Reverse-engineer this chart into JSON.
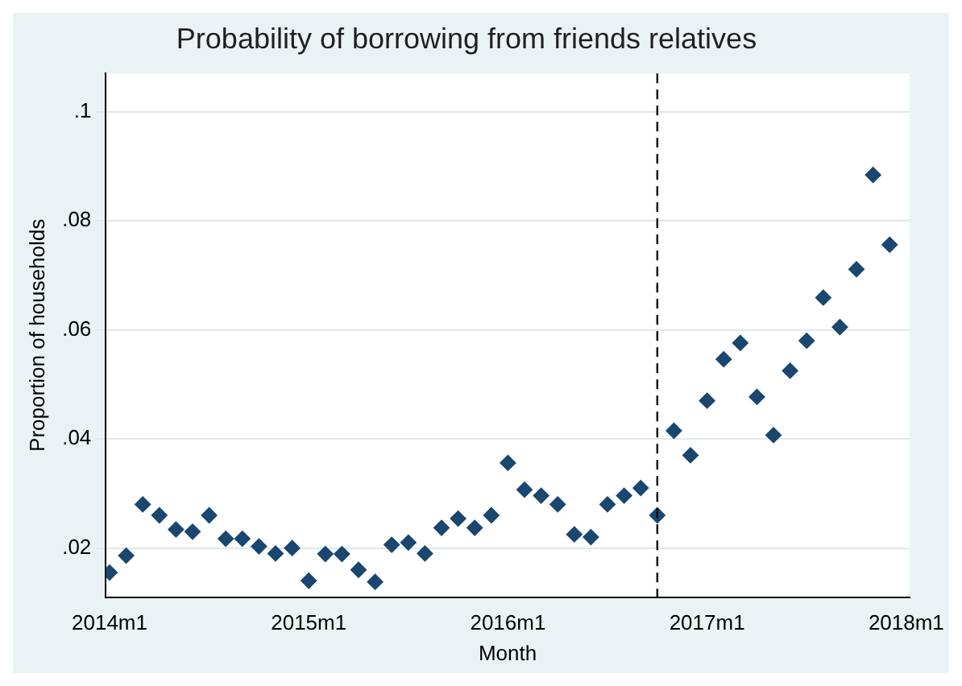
{
  "chart_data": {
    "type": "scatter",
    "title": "Probability of borrowing from friends relatives",
    "xlabel": "Month",
    "ylabel": "Proportion of households",
    "x": [
      "2014-01",
      "2014-02",
      "2014-03",
      "2014-04",
      "2014-05",
      "2014-06",
      "2014-07",
      "2014-08",
      "2014-09",
      "2014-10",
      "2014-11",
      "2014-12",
      "2015-01",
      "2015-02",
      "2015-03",
      "2015-04",
      "2015-05",
      "2015-06",
      "2015-07",
      "2015-08",
      "2015-09",
      "2015-10",
      "2015-11",
      "2015-12",
      "2016-01",
      "2016-02",
      "2016-03",
      "2016-04",
      "2016-05",
      "2016-06",
      "2016-07",
      "2016-08",
      "2016-09",
      "2016-10",
      "2016-11",
      "2016-12",
      "2017-01",
      "2017-02",
      "2017-03",
      "2017-04",
      "2017-05",
      "2017-06",
      "2017-07",
      "2017-08",
      "2017-09",
      "2017-10",
      "2017-11",
      "2017-12"
    ],
    "series": [
      {
        "color": "#1a476f",
        "values": [
          0.0155,
          0.0186,
          0.028,
          0.026,
          0.0234,
          0.023,
          0.026,
          0.0217,
          0.0217,
          0.0203,
          0.019,
          0.02,
          0.014,
          0.0189,
          0.0189,
          0.016,
          0.0138,
          0.0206,
          0.021,
          0.019,
          0.0237,
          0.0254,
          0.0237,
          0.026,
          0.0356,
          0.0307,
          0.0296,
          0.028,
          0.0225,
          0.022,
          0.028,
          0.0296,
          0.031,
          0.026,
          0.0415,
          0.037,
          0.047,
          0.0546,
          0.0576,
          0.0477,
          0.0407,
          0.0525,
          0.058,
          0.0659,
          0.0605,
          0.0711,
          0.0884,
          0.0756
        ]
      }
    ],
    "xlim": [
      "2013-12-25",
      "2018-01-07"
    ],
    "xticks": [
      {
        "value": "2014-01",
        "label": "2014m1"
      },
      {
        "value": "2015-01",
        "label": "2015m1"
      },
      {
        "value": "2016-01",
        "label": "2016m1"
      },
      {
        "value": "2017-01",
        "label": "2017m1"
      },
      {
        "value": "2018-01",
        "label": "2018m1"
      }
    ],
    "ylim": [
      0.011,
      0.107
    ],
    "yticks": [
      {
        "value": 0.02,
        "label": ".02"
      },
      {
        "value": 0.04,
        "label": ".04"
      },
      {
        "value": 0.06,
        "label": ".06"
      },
      {
        "value": 0.08,
        "label": ".08"
      },
      {
        "value": 0.1,
        "label": ".1"
      }
    ],
    "ref_lines": [
      {
        "axis": "x",
        "value": "2016-10",
        "color": "#000000",
        "line_style": "dashed"
      }
    ],
    "grid": "y",
    "legend": false,
    "marker": "diamond"
  }
}
